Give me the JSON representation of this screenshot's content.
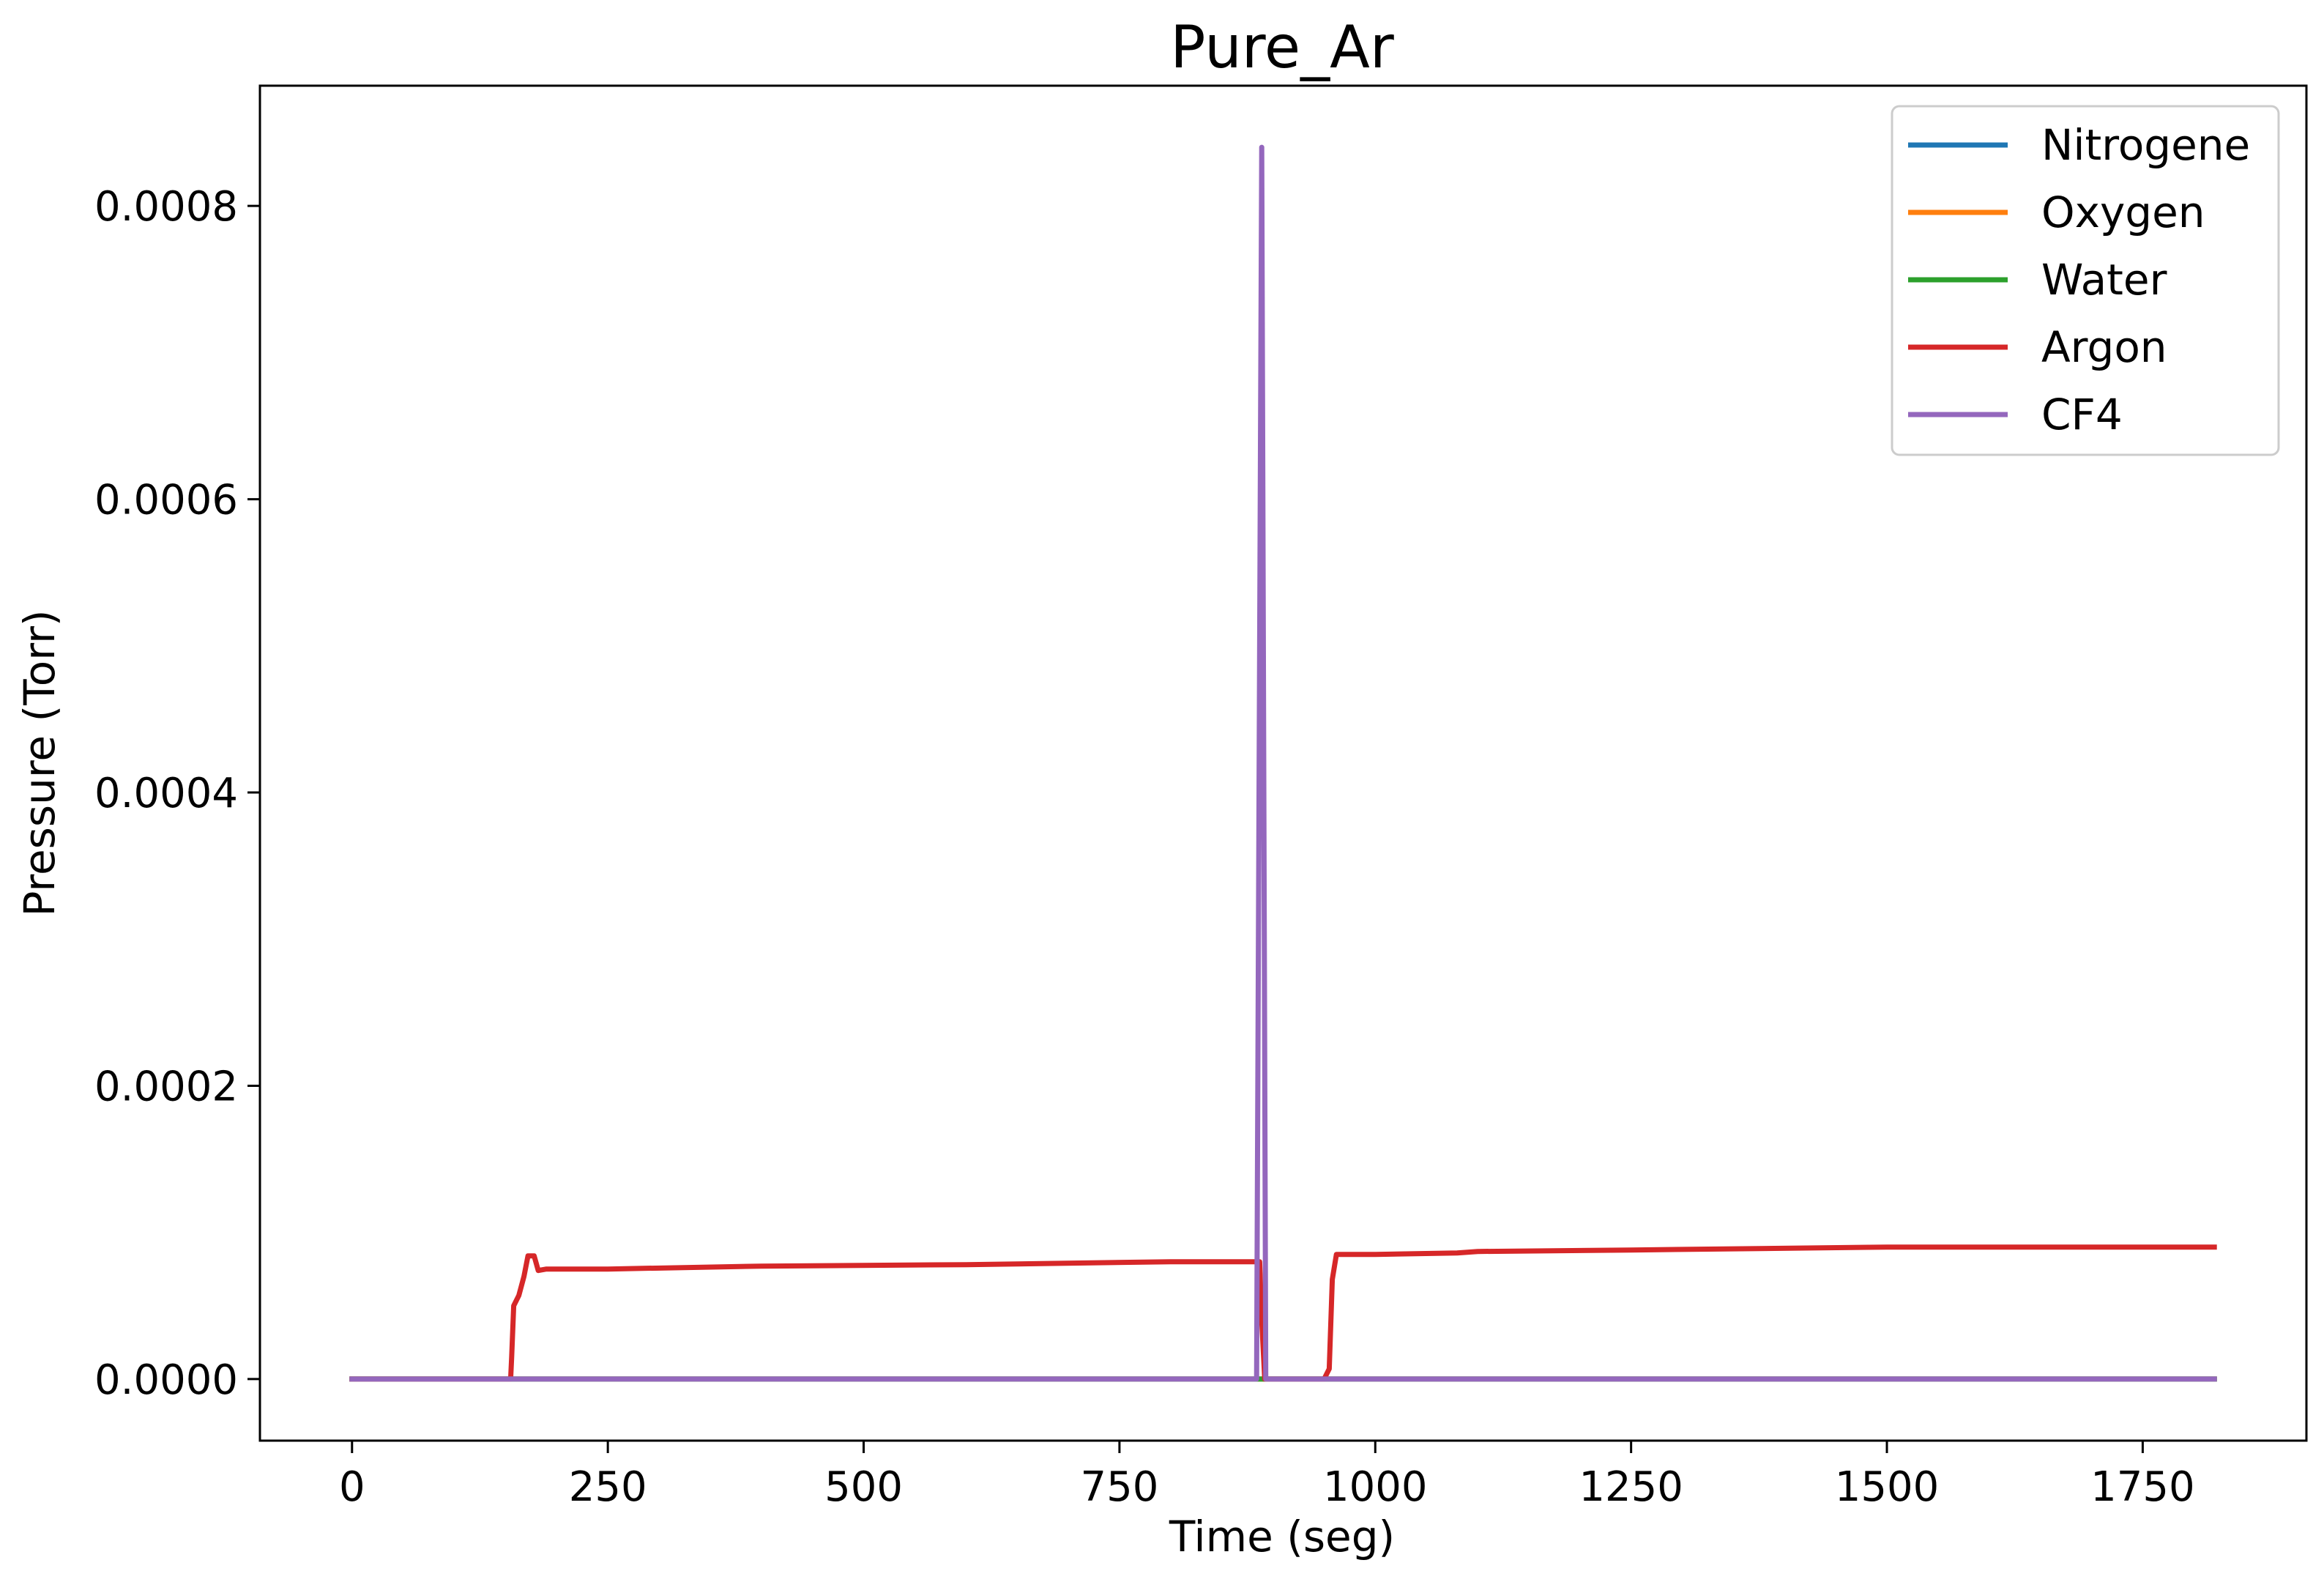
{
  "chart_data": {
    "type": "line",
    "title": "Pure_Ar",
    "xlabel": "Time (seg)",
    "ylabel": "Pressure (Torr)",
    "xlim": [
      -90,
      1910
    ],
    "ylim": [
      -4.2e-05,
      0.000882
    ],
    "x_ticks": [
      0,
      250,
      500,
      750,
      1000,
      1250,
      1500,
      1750
    ],
    "x_tick_labels": [
      "0",
      "250",
      "500",
      "750",
      "1000",
      "1250",
      "1500",
      "1750"
    ],
    "y_ticks": [
      0,
      0.0002,
      0.0004,
      0.0006,
      0.0008
    ],
    "y_tick_labels": [
      "0.0000",
      "0.0002",
      "0.0004",
      "0.0006",
      "0.0008"
    ],
    "grid": false,
    "legend_position": "top-right",
    "series": [
      {
        "name": "Nitrogene",
        "color": "#1f77b4",
        "points": [
          [
            0,
            0
          ],
          [
            1820,
            0
          ]
        ]
      },
      {
        "name": "Oxygen",
        "color": "#ff7f0e",
        "points": [
          [
            0,
            0
          ],
          [
            1820,
            0
          ]
        ]
      },
      {
        "name": "Water",
        "color": "#2ca02c",
        "points": [
          [
            0,
            0
          ],
          [
            1820,
            0
          ]
        ]
      },
      {
        "name": "Argon",
        "color": "#d62728",
        "points": [
          [
            0,
            0
          ],
          [
            155,
            0
          ],
          [
            156,
            1.5e-05
          ],
          [
            158,
            5e-05
          ],
          [
            163,
            5.7e-05
          ],
          [
            168,
            7e-05
          ],
          [
            172,
            8.4e-05
          ],
          [
            178,
            8.4e-05
          ],
          [
            182,
            7.4e-05
          ],
          [
            190,
            7.5e-05
          ],
          [
            250,
            7.5e-05
          ],
          [
            400,
            7.7e-05
          ],
          [
            600,
            7.8e-05
          ],
          [
            800,
            8e-05
          ],
          [
            887,
            8e-05
          ],
          [
            889,
            4e-05
          ],
          [
            892,
            0
          ],
          [
            950,
            0
          ],
          [
            955,
            7e-06
          ],
          [
            958,
            6.8e-05
          ],
          [
            962,
            8.5e-05
          ],
          [
            1000,
            8.5e-05
          ],
          [
            1080,
            8.6e-05
          ],
          [
            1100,
            8.7e-05
          ],
          [
            1250,
            8.8e-05
          ],
          [
            1500,
            9e-05
          ],
          [
            1800,
            9e-05
          ],
          [
            1820,
            9e-05
          ]
        ]
      },
      {
        "name": "CF4",
        "color": "#9467bd",
        "points": [
          [
            0,
            0
          ],
          [
            884,
            0
          ],
          [
            889,
            0.00084
          ],
          [
            893,
            0
          ],
          [
            1820,
            0
          ]
        ]
      }
    ]
  }
}
